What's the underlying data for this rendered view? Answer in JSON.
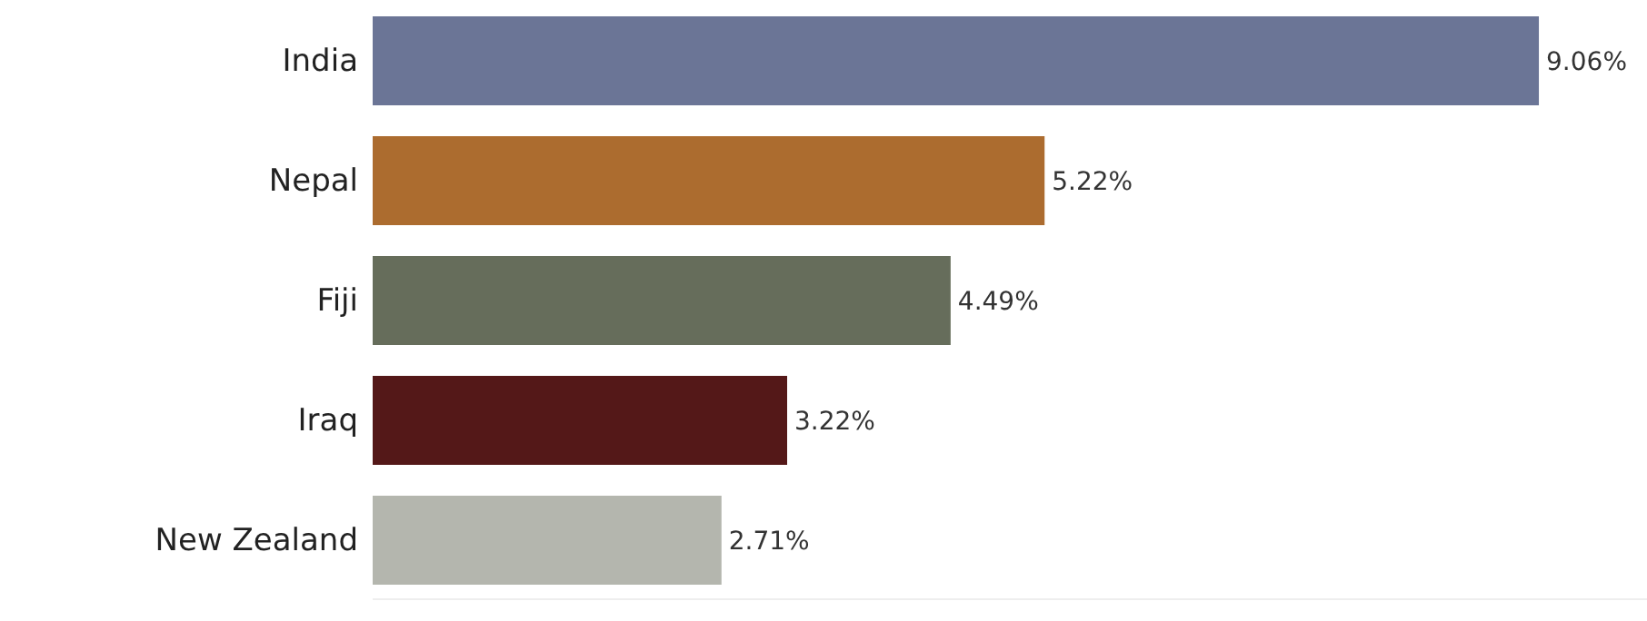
{
  "chart_data": {
    "type": "bar",
    "orientation": "horizontal",
    "categories": [
      "India",
      "Nepal",
      "Fiji",
      "Iraq",
      "New Zealand"
    ],
    "values": [
      9.06,
      5.22,
      4.49,
      3.22,
      2.71
    ],
    "colors": [
      "#6b7596",
      "#ac6c2f",
      "#666d5b",
      "#541818",
      "#b4b6ae"
    ],
    "value_labels": [
      "9.06%",
      "5.22%",
      "4.49%",
      "3.22%",
      "2.71%"
    ],
    "xlim": [
      0,
      9.9
    ],
    "tick_labels": "y"
  }
}
